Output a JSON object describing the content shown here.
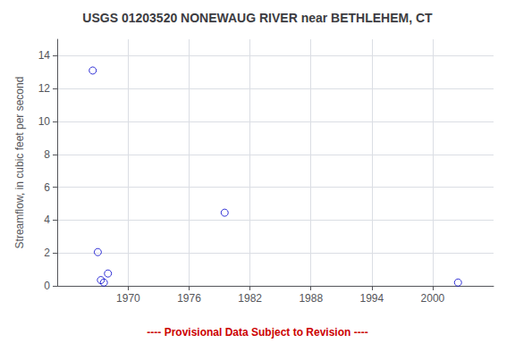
{
  "chart_data": {
    "type": "scatter",
    "title": "USGS 01203520 NONEWAUG RIVER near BETHLEHEM, CT",
    "ylabel": "Streamflow, in cubic feet per second",
    "x": [
      1966.5,
      1967.0,
      1967.3,
      1967.6,
      1968.0,
      1979.5,
      2002.5
    ],
    "values": [
      13.1,
      2.05,
      0.35,
      0.2,
      0.75,
      4.45,
      0.2
    ],
    "color": "#0000cc",
    "marker": "open circle",
    "xlim": [
      1963,
      2006
    ],
    "xticks": [
      1970,
      1976,
      1982,
      1988,
      1994,
      2000
    ],
    "ylim": [
      0,
      15
    ],
    "yticks": [
      0,
      2,
      4,
      6,
      8,
      10,
      12,
      14
    ],
    "grid": true,
    "annotations": [
      {
        "text": "---- Provisional Data Subject to Revision ----",
        "color": "#cc0000"
      }
    ]
  }
}
